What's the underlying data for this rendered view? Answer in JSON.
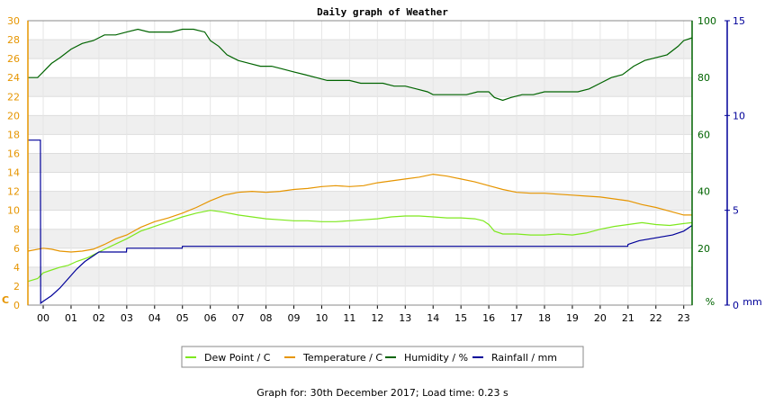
{
  "chart_data": {
    "type": "line",
    "title": "Daily graph of Weather",
    "x_ticks": [
      "00",
      "01",
      "02",
      "03",
      "04",
      "05",
      "06",
      "07",
      "08",
      "09",
      "10",
      "11",
      "12",
      "13",
      "14",
      "15",
      "16",
      "17",
      "18",
      "19",
      "20",
      "21",
      "22",
      "23"
    ],
    "xlim": [
      -0.55,
      23.3
    ],
    "axes": {
      "left": {
        "label": "C",
        "ylim": [
          0,
          30
        ],
        "ticks": [
          0,
          2,
          4,
          6,
          8,
          10,
          12,
          14,
          16,
          18,
          20,
          22,
          24,
          26,
          28,
          30
        ],
        "color": "#e69500"
      },
      "right1": {
        "label": "%",
        "ylim": [
          0,
          100
        ],
        "ticks": [
          20,
          40,
          60,
          80,
          100
        ],
        "color": "#006400"
      },
      "right2": {
        "label": "mm",
        "ylim": [
          0,
          15
        ],
        "ticks": [
          0,
          5,
          10,
          15
        ],
        "color": "#000099"
      }
    },
    "grid": true,
    "legend_position": "bottom-center",
    "series": [
      {
        "name": "Dew Point / C",
        "axis": "left",
        "color": "#7ee81e",
        "x": [
          -0.55,
          -0.2,
          0.0,
          0.3,
          0.6,
          0.9,
          1.2,
          1.6,
          2.0,
          2.5,
          3.0,
          3.5,
          4.0,
          4.5,
          5.0,
          5.5,
          6.0,
          6.5,
          7.0,
          7.5,
          8.0,
          8.5,
          9.0,
          9.5,
          10.0,
          10.5,
          11.0,
          11.5,
          12.0,
          12.5,
          13.0,
          13.5,
          14.0,
          14.5,
          15.0,
          15.5,
          15.8,
          16.0,
          16.2,
          16.5,
          17.0,
          17.5,
          18.0,
          18.5,
          19.0,
          19.5,
          20.0,
          20.5,
          21.0,
          21.5,
          22.0,
          22.5,
          23.0,
          23.3
        ],
        "y": [
          2.5,
          2.8,
          3.4,
          3.7,
          4.0,
          4.2,
          4.6,
          5.0,
          5.6,
          6.3,
          7.0,
          7.8,
          8.3,
          8.8,
          9.3,
          9.7,
          10.0,
          9.8,
          9.5,
          9.3,
          9.1,
          9.0,
          8.9,
          8.9,
          8.8,
          8.8,
          8.9,
          9.0,
          9.1,
          9.3,
          9.4,
          9.4,
          9.3,
          9.2,
          9.2,
          9.1,
          8.9,
          8.5,
          7.8,
          7.5,
          7.5,
          7.4,
          7.4,
          7.5,
          7.4,
          7.6,
          8.0,
          8.3,
          8.5,
          8.7,
          8.5,
          8.4,
          8.6,
          8.7
        ]
      },
      {
        "name": "Temperature / C",
        "axis": "left",
        "color": "#e69500",
        "x": [
          -0.55,
          0.0,
          0.3,
          0.6,
          1.0,
          1.4,
          1.8,
          2.2,
          2.6,
          3.0,
          3.5,
          4.0,
          4.5,
          5.0,
          5.5,
          6.0,
          6.5,
          7.0,
          7.5,
          8.0,
          8.5,
          9.0,
          9.5,
          10.0,
          10.5,
          11.0,
          11.5,
          12.0,
          12.5,
          13.0,
          13.5,
          14.0,
          14.5,
          15.0,
          15.5,
          16.0,
          16.5,
          17.0,
          17.5,
          18.0,
          18.5,
          19.0,
          19.5,
          20.0,
          20.5,
          21.0,
          21.5,
          22.0,
          22.5,
          23.0,
          23.3
        ],
        "y": [
          5.7,
          6.0,
          5.9,
          5.7,
          5.6,
          5.7,
          5.9,
          6.4,
          7.0,
          7.4,
          8.2,
          8.8,
          9.2,
          9.7,
          10.3,
          11.0,
          11.6,
          11.9,
          12.0,
          11.9,
          12.0,
          12.2,
          12.3,
          12.5,
          12.6,
          12.5,
          12.6,
          12.9,
          13.1,
          13.3,
          13.5,
          13.8,
          13.6,
          13.3,
          13.0,
          12.6,
          12.2,
          11.9,
          11.8,
          11.8,
          11.7,
          11.6,
          11.5,
          11.4,
          11.2,
          11.0,
          10.6,
          10.3,
          9.9,
          9.5,
          9.5
        ]
      },
      {
        "name": "Humidity / %",
        "axis": "right1",
        "color": "#006400",
        "x": [
          -0.55,
          -0.2,
          0.0,
          0.3,
          0.6,
          1.0,
          1.4,
          1.8,
          2.2,
          2.6,
          3.0,
          3.4,
          3.8,
          4.2,
          4.6,
          5.0,
          5.4,
          5.8,
          6.0,
          6.3,
          6.6,
          7.0,
          7.4,
          7.8,
          8.2,
          8.6,
          9.0,
          9.4,
          9.8,
          10.2,
          10.6,
          11.0,
          11.4,
          11.8,
          12.2,
          12.6,
          13.0,
          13.4,
          13.8,
          14.0,
          14.4,
          14.8,
          15.2,
          15.6,
          16.0,
          16.2,
          16.5,
          16.8,
          17.2,
          17.6,
          18.0,
          18.4,
          18.8,
          19.2,
          19.6,
          20.0,
          20.4,
          20.8,
          21.2,
          21.6,
          22.0,
          22.4,
          22.8,
          23.0,
          23.3
        ],
        "y": [
          80,
          80,
          82,
          85,
          87,
          90,
          92,
          93,
          95,
          95,
          96,
          97,
          96,
          96,
          96,
          97,
          97,
          96,
          93,
          91,
          88,
          86,
          85,
          84,
          84,
          83,
          82,
          81,
          80,
          79,
          79,
          79,
          78,
          78,
          78,
          77,
          77,
          76,
          75,
          74,
          74,
          74,
          74,
          75,
          75,
          73,
          72,
          73,
          74,
          74,
          75,
          75,
          75,
          75,
          76,
          78,
          80,
          81,
          84,
          86,
          87,
          88,
          91,
          93,
          94
        ]
      },
      {
        "name": "Rainfall / mm",
        "axis": "right2",
        "color": "#000099",
        "x": [
          -0.55,
          -0.1,
          -0.09,
          0.0,
          0.3,
          0.6,
          0.9,
          1.2,
          1.5,
          1.8,
          2.0,
          2.5,
          2.99,
          3.0,
          4.0,
          4.99,
          5.0,
          6.0,
          8.0,
          10.0,
          12.0,
          14.0,
          16.0,
          18.0,
          20.0,
          20.99,
          21.0,
          21.4,
          21.8,
          22.2,
          22.6,
          23.0,
          23.3
        ],
        "y": [
          8.7,
          8.7,
          0.1,
          0.2,
          0.5,
          0.9,
          1.4,
          1.9,
          2.3,
          2.6,
          2.8,
          2.8,
          2.8,
          3.0,
          3.0,
          3.0,
          3.1,
          3.1,
          3.1,
          3.1,
          3.1,
          3.1,
          3.1,
          3.1,
          3.1,
          3.1,
          3.2,
          3.4,
          3.5,
          3.6,
          3.7,
          3.9,
          4.2
        ]
      }
    ]
  },
  "footer_text": "Graph for: 30th December 2017; Load time: 0.23 s"
}
